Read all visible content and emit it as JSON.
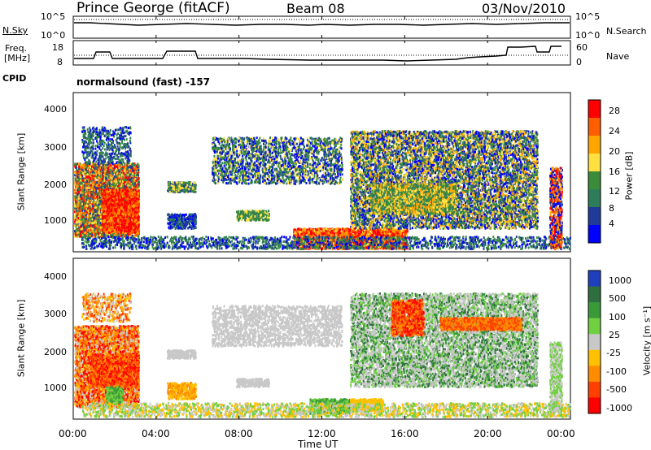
{
  "header": {
    "station": "Prince George (fitACF)",
    "beam": "Beam 08",
    "date": "03/Nov/2010"
  },
  "labels": {
    "nsky": "N.Sky",
    "nsearch": "N.Search",
    "freq_line1": "Freq.",
    "freq_line2": "[MHz]",
    "nave": "Nave",
    "cpid": "CPID",
    "cpid_value": "normalsound (fast) -157"
  },
  "chart_data": [
    {
      "type": "line",
      "name": "noise",
      "yticks_left": [
        "10^5",
        "10^0"
      ],
      "yticks_right": [
        "10^5",
        "10^0"
      ]
    },
    {
      "type": "line",
      "name": "freq-nave",
      "yticks_left": [
        "18",
        "8"
      ],
      "yticks_right": [
        "60",
        "0"
      ]
    },
    {
      "type": "heatmap",
      "name": "power",
      "ylabel": "Slant Range [km]",
      "yticks": [
        "1000",
        "2000",
        "3000",
        "4000"
      ],
      "colorbar_label": "Power [dB]",
      "colorbar_ticks": [
        "28",
        "24",
        "20",
        "16",
        "12",
        "8",
        "4"
      ],
      "colors": [
        "#ff0000",
        "#ff5e00",
        "#ffa500",
        "#ffe040",
        "#3a8c3a",
        "#2e7d5a",
        "#203a9a",
        "#0000ff"
      ]
    },
    {
      "type": "heatmap",
      "name": "velocity",
      "ylabel": "Slant Range [km]",
      "yticks": [
        "1000",
        "2000",
        "3000",
        "4000"
      ],
      "colorbar_label": "Velocity [m s⁻¹]",
      "colorbar_ticks": [
        "1000",
        "500",
        "100",
        "25",
        "-25",
        "-100",
        "-500",
        "-1000"
      ],
      "colors": [
        "#1f3fbf",
        "#2f6f3f",
        "#3a9a3a",
        "#70d040",
        "#c8c8c8",
        "#ffc000",
        "#ff8c00",
        "#ff4000",
        "#ff0000"
      ]
    }
  ],
  "xaxis": {
    "ticks": [
      "00:00",
      "04:00",
      "08:00",
      "12:00",
      "16:00",
      "20:00",
      "00:00"
    ],
    "label": "Time UT"
  }
}
